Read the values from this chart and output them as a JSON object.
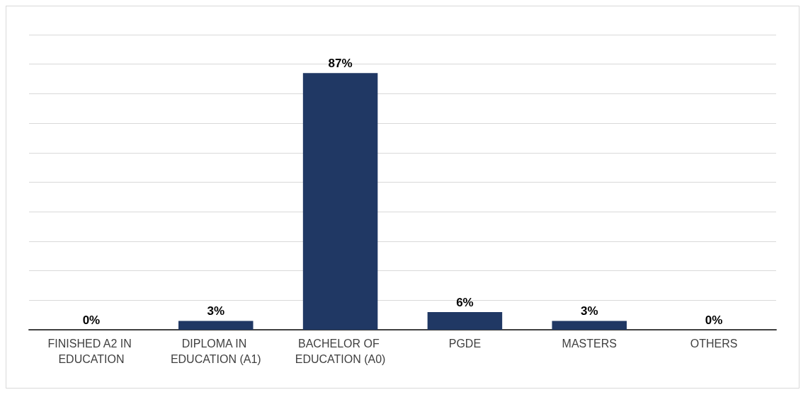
{
  "chart_data": {
    "type": "bar",
    "categories": [
      "FINISHED A2 IN EDUCATION",
      "DIPLOMA IN EDUCATION (A1)",
      "BACHELOR OF EDUCATION (A0)",
      "PGDE",
      "MASTERS",
      "OTHERS"
    ],
    "values": [
      0,
      3,
      87,
      6,
      3,
      0
    ],
    "color": "#203864",
    "value_labels": [
      "0%",
      "3%",
      "87%",
      "6%",
      "3%",
      "0%"
    ],
    "ylim": [
      0,
      100
    ],
    "yticks": [
      {
        "value": 0,
        "label": null
      },
      {
        "value": 10,
        "label": null
      },
      {
        "value": 20,
        "label": null
      },
      {
        "value": 30,
        "label": null
      },
      {
        "value": 40,
        "label": null
      },
      {
        "value": 50,
        "label": null
      },
      {
        "value": 60,
        "label": null
      },
      {
        "value": 70,
        "label": null
      },
      {
        "value": 80,
        "label": null
      },
      {
        "value": 90,
        "label": null
      },
      {
        "value": 100,
        "label": null
      }
    ],
    "grid": "y",
    "tick_labels": "x"
  }
}
